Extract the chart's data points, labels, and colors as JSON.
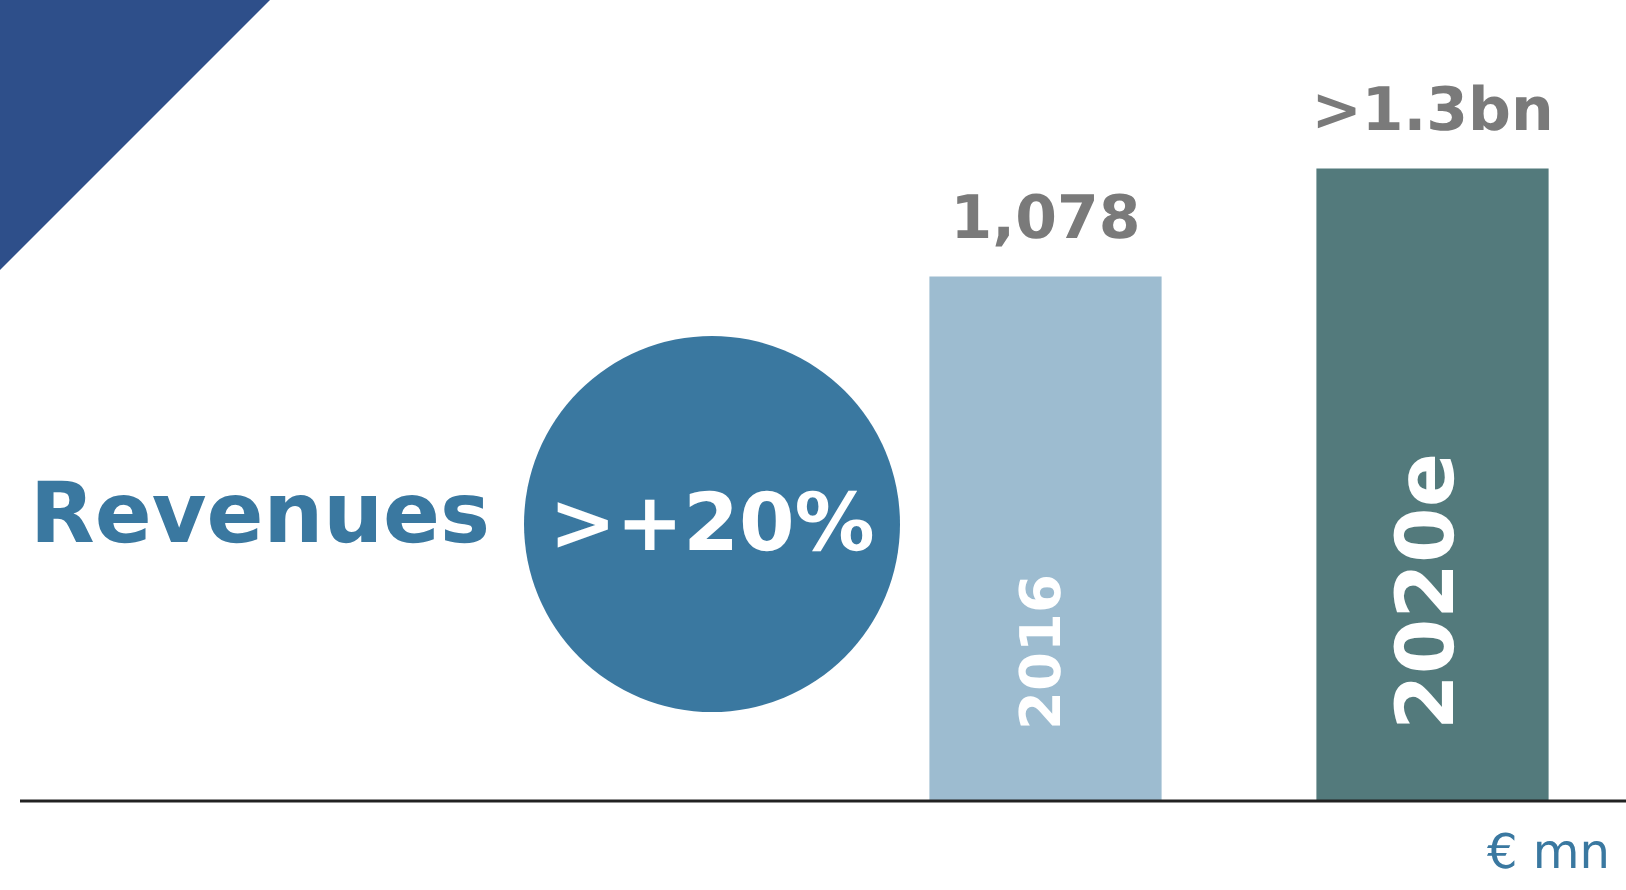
{
  "chart_data": {
    "type": "bar",
    "title": "Revenues",
    "categories": [
      "2016",
      "2020e"
    ],
    "values": [
      1078,
      1300
    ],
    "colors": [
      "#9dbcd0",
      "#537a7c"
    ],
    "value_labels": [
      "1,078",
      ">1.3bn"
    ],
    "annotations": [
      ">+20%",
      "€ mn"
    ],
    "tick_labels": false
  }
}
